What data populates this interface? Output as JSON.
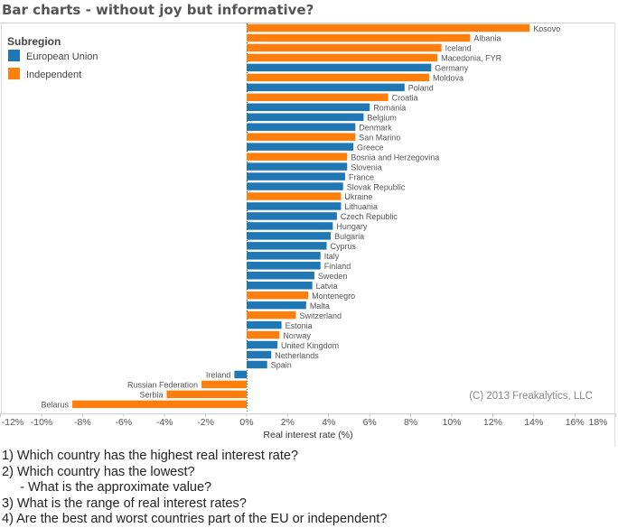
{
  "chart_data": {
    "type": "bar",
    "orientation": "horizontal",
    "title": "Bar charts - without joy but informative?",
    "xlabel": "Real interest rate (%)",
    "ylabel": "",
    "xlim": [
      -12,
      18
    ],
    "x_ticks": [
      "-12%",
      "-10%",
      "-8%",
      "-6%",
      "-4%",
      "-2%",
      "0%",
      "2%",
      "4%",
      "6%",
      "8%",
      "10%",
      "12%",
      "14%",
      "16%",
      "18%"
    ],
    "x_tick_values": [
      -12,
      -10,
      -8,
      -6,
      -4,
      -2,
      0,
      2,
      4,
      6,
      8,
      10,
      12,
      14,
      16,
      18
    ],
    "grid": false,
    "legend": {
      "title": "Subregion",
      "placement": "top-left",
      "entries": [
        {
          "name": "European Union",
          "color": "#1f77b4"
        },
        {
          "name": "Independent",
          "color": "#ff7f0e"
        }
      ]
    },
    "annotation": "(C) 2013 Freakalytics, LLC",
    "categories": [
      "Kosovo",
      "Albania",
      "Iceland",
      "Macedonia, FYR",
      "Germany",
      "Moldova",
      "Poland",
      "Croatia",
      "Romania",
      "Belgium",
      "Denmark",
      "San Marino",
      "Greece",
      "Bosnia and Herzegovina",
      "Slovenia",
      "France",
      "Slovak Republic",
      "Ukraine",
      "Lithuania",
      "Czech Republic",
      "Hungary",
      "Bulgaria",
      "Cyprus",
      "Italy",
      "Finland",
      "Sweden",
      "Latvia",
      "Montenegro",
      "Malta",
      "Switzerland",
      "Estonia",
      "Norway",
      "United Kingdom",
      "Netherlands",
      "Spain",
      "Ireland",
      "Russian Federation",
      "Serbia",
      "Belarus"
    ],
    "values": [
      13.8,
      10.9,
      9.5,
      9.3,
      9.0,
      8.9,
      7.7,
      6.9,
      6.0,
      5.7,
      5.3,
      5.3,
      5.2,
      4.9,
      4.9,
      4.8,
      4.7,
      4.6,
      4.6,
      4.4,
      4.2,
      4.1,
      3.9,
      3.6,
      3.6,
      3.3,
      3.2,
      3.0,
      2.9,
      2.4,
      1.7,
      1.6,
      1.5,
      1.2,
      1.0,
      -0.6,
      -2.2,
      -3.9,
      -8.5
    ],
    "group": [
      "Independent",
      "Independent",
      "Independent",
      "Independent",
      "European Union",
      "Independent",
      "European Union",
      "Independent",
      "European Union",
      "European Union",
      "European Union",
      "Independent",
      "European Union",
      "Independent",
      "European Union",
      "European Union",
      "European Union",
      "Independent",
      "European Union",
      "European Union",
      "European Union",
      "European Union",
      "European Union",
      "European Union",
      "European Union",
      "European Union",
      "European Union",
      "Independent",
      "European Union",
      "Independent",
      "European Union",
      "Independent",
      "European Union",
      "European Union",
      "European Union",
      "European Union",
      "Independent",
      "Independent",
      "Independent"
    ]
  },
  "questions": [
    "1) Which country has the highest real interest rate?",
    "2) Which country has the lowest?",
    "     - What is the approximate value?",
    "3) What is the range of real interest rates?",
    "4) Are the best and worst countries part of the EU or independent?"
  ]
}
